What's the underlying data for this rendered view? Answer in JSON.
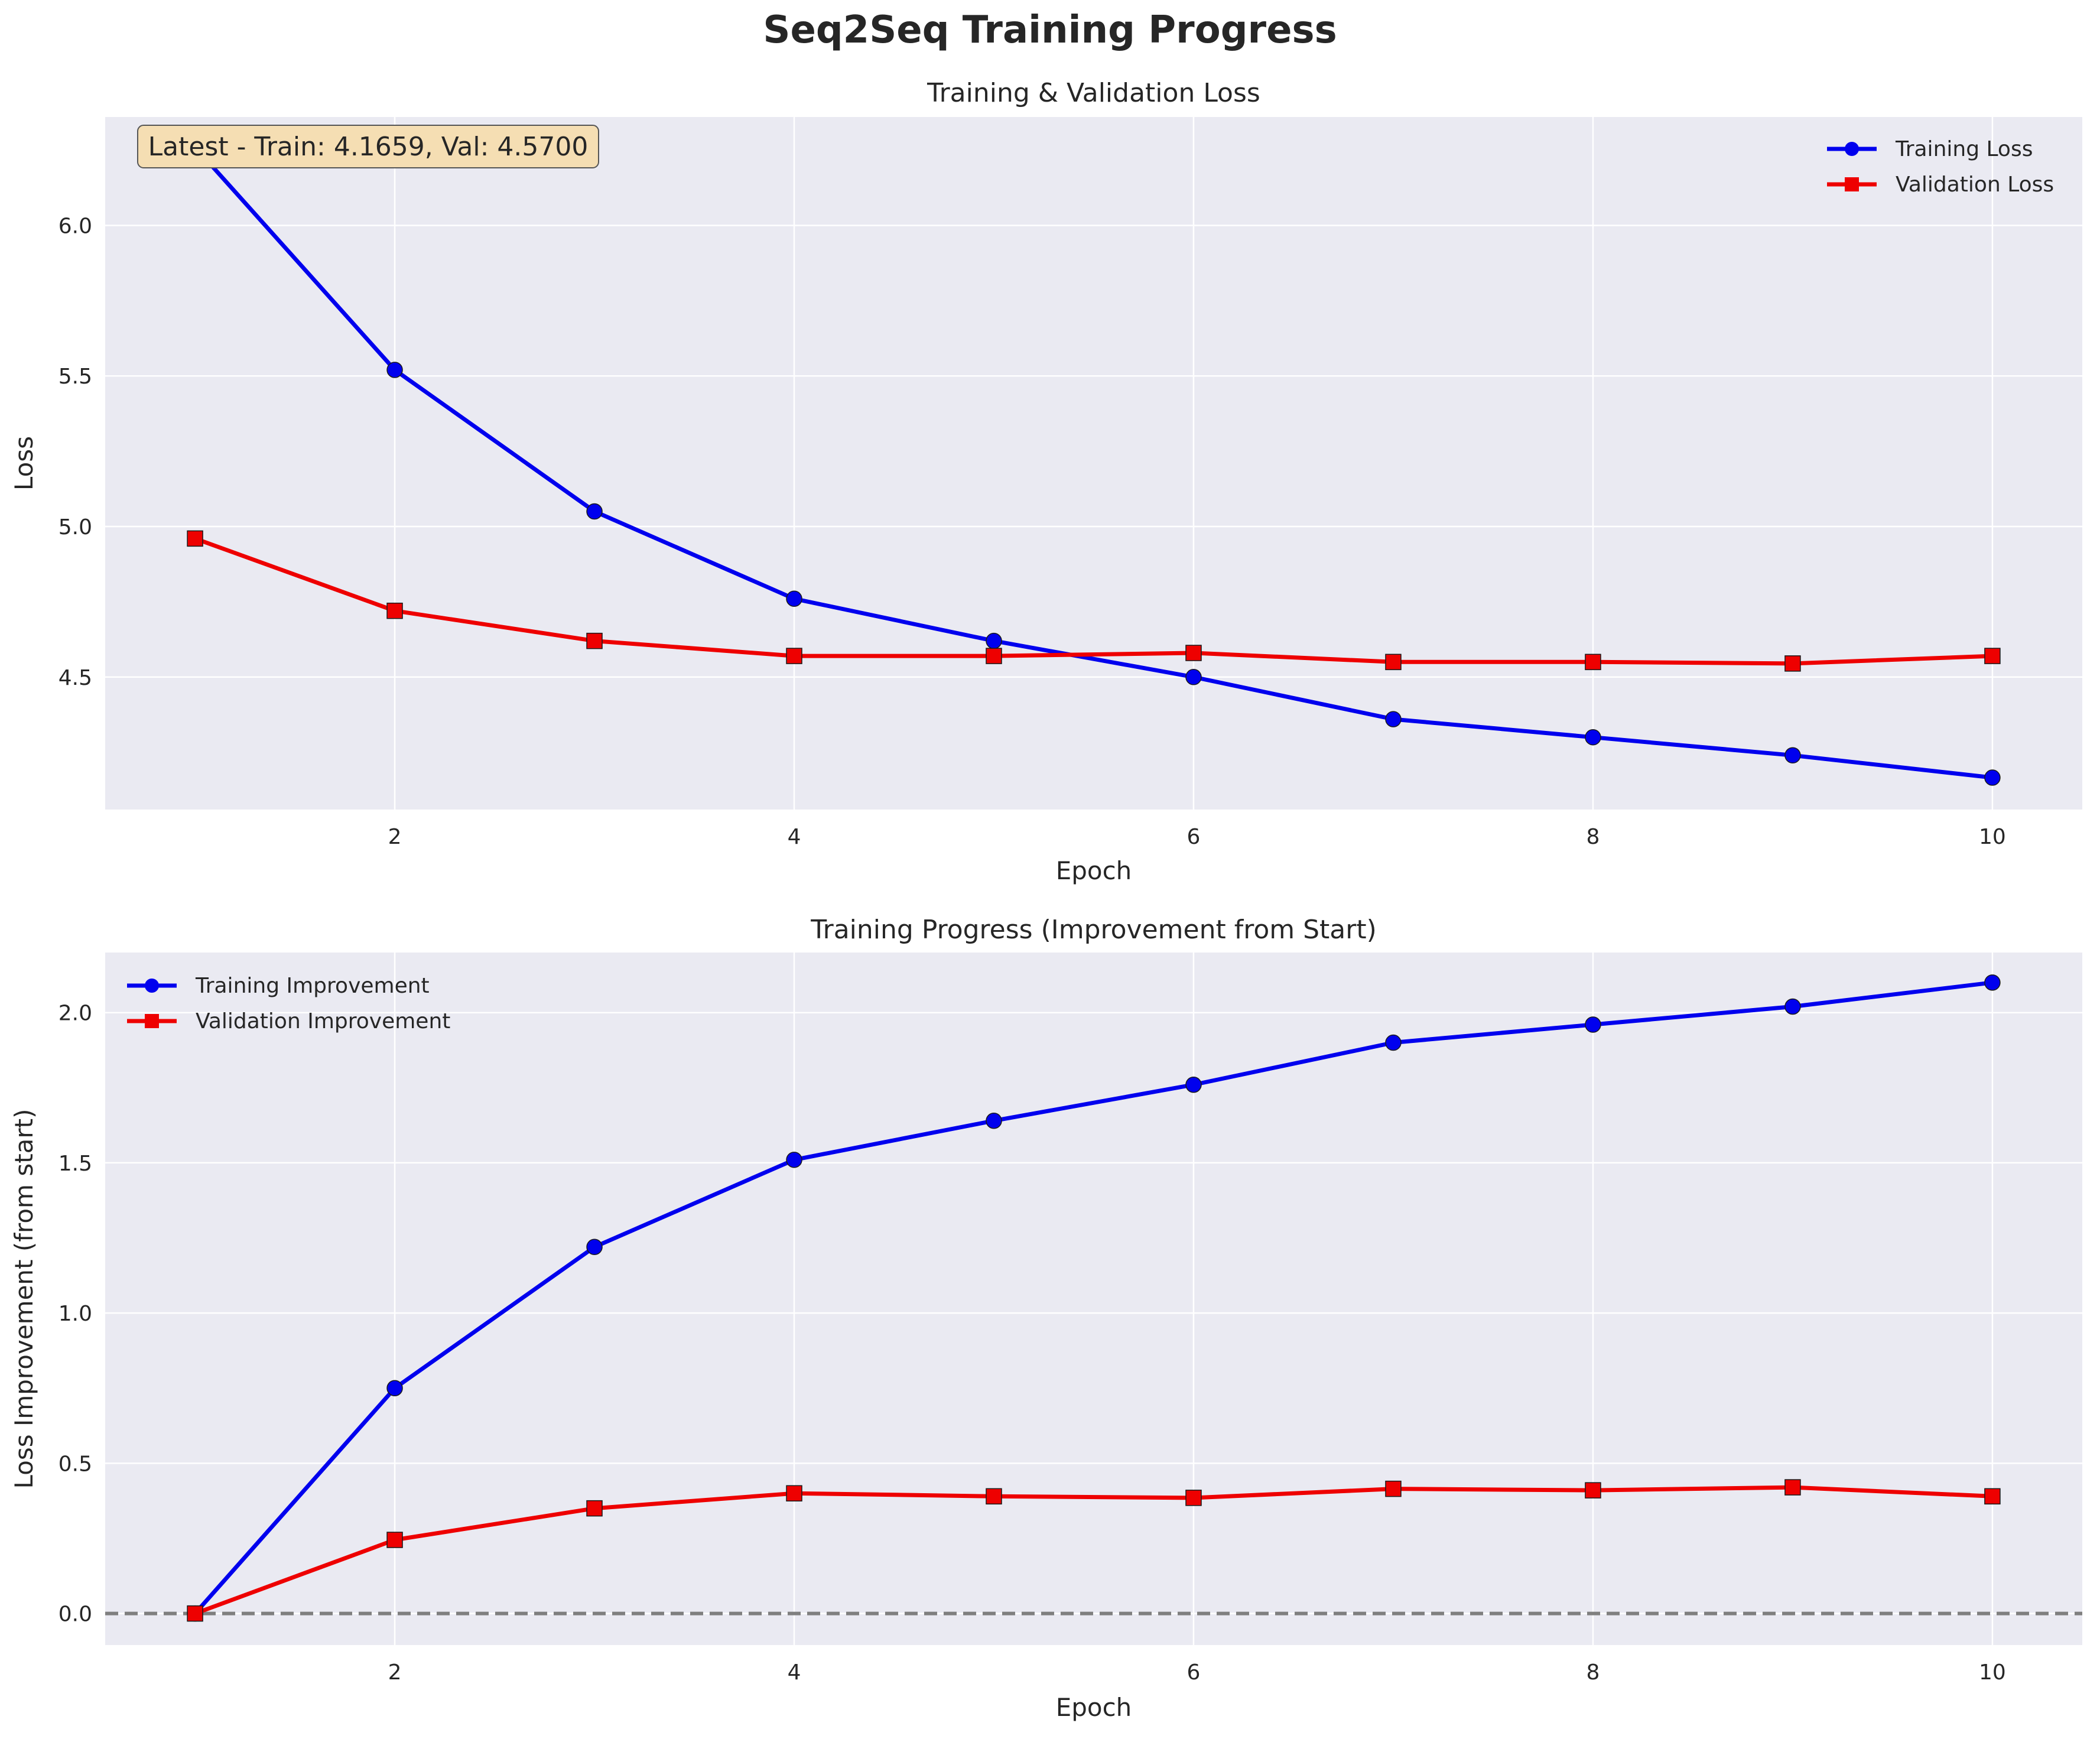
{
  "suptitle": "Seq2Seq Training Progress",
  "colors": {
    "train": "#0000ee",
    "val": "#ee0000",
    "panel": "#eaeaf2",
    "zero_line": "#7f7f7f",
    "note_box": "#f5deb3"
  },
  "chart_data": [
    {
      "type": "line",
      "title": "Training & Validation Loss",
      "xlabel": "Epoch",
      "ylabel": "Loss",
      "x": [
        1,
        2,
        3,
        4,
        5,
        6,
        7,
        8,
        9,
        10
      ],
      "xlim": [
        0.55,
        10.45
      ],
      "ylim": [
        4.06,
        6.36
      ],
      "xticks": [
        2,
        4,
        6,
        8,
        10
      ],
      "yticks": [
        4.5,
        5.0,
        5.5,
        6.0
      ],
      "ytick_labels": [
        "4.5",
        "5.0",
        "5.5",
        "6.0"
      ],
      "grid": true,
      "legend_position": "top-right",
      "annotation": "Latest - Train: 4.1659, Val: 4.5700",
      "series": [
        {
          "name": "Training Loss",
          "marker": "circle",
          "color": "#0000ee",
          "values": [
            6.26,
            5.52,
            5.05,
            4.76,
            4.62,
            4.5,
            4.36,
            4.3,
            4.24,
            4.1659
          ]
        },
        {
          "name": "Validation Loss",
          "marker": "square",
          "color": "#ee0000",
          "values": [
            4.96,
            4.72,
            4.62,
            4.57,
            4.57,
            4.58,
            4.55,
            4.55,
            4.545,
            4.57
          ]
        }
      ]
    },
    {
      "type": "line",
      "title": "Training Progress (Improvement from Start)",
      "xlabel": "Epoch",
      "ylabel": "Loss Improvement (from start)",
      "x": [
        1,
        2,
        3,
        4,
        5,
        6,
        7,
        8,
        9,
        10
      ],
      "xlim": [
        0.55,
        10.45
      ],
      "ylim": [
        -0.105,
        2.2
      ],
      "xticks": [
        2,
        4,
        6,
        8,
        10
      ],
      "yticks": [
        0.0,
        0.5,
        1.0,
        1.5,
        2.0
      ],
      "ytick_labels": [
        "0.0",
        "0.5",
        "1.0",
        "1.5",
        "2.0"
      ],
      "grid": true,
      "legend_position": "top-left",
      "reference_line": 0,
      "series": [
        {
          "name": "Training Improvement",
          "marker": "circle",
          "color": "#0000ee",
          "values": [
            0.0,
            0.75,
            1.22,
            1.51,
            1.64,
            1.76,
            1.9,
            1.96,
            2.02,
            2.1
          ]
        },
        {
          "name": "Validation Improvement",
          "marker": "square",
          "color": "#ee0000",
          "values": [
            0.0,
            0.245,
            0.35,
            0.4,
            0.39,
            0.385,
            0.415,
            0.41,
            0.42,
            0.39
          ]
        }
      ]
    }
  ]
}
